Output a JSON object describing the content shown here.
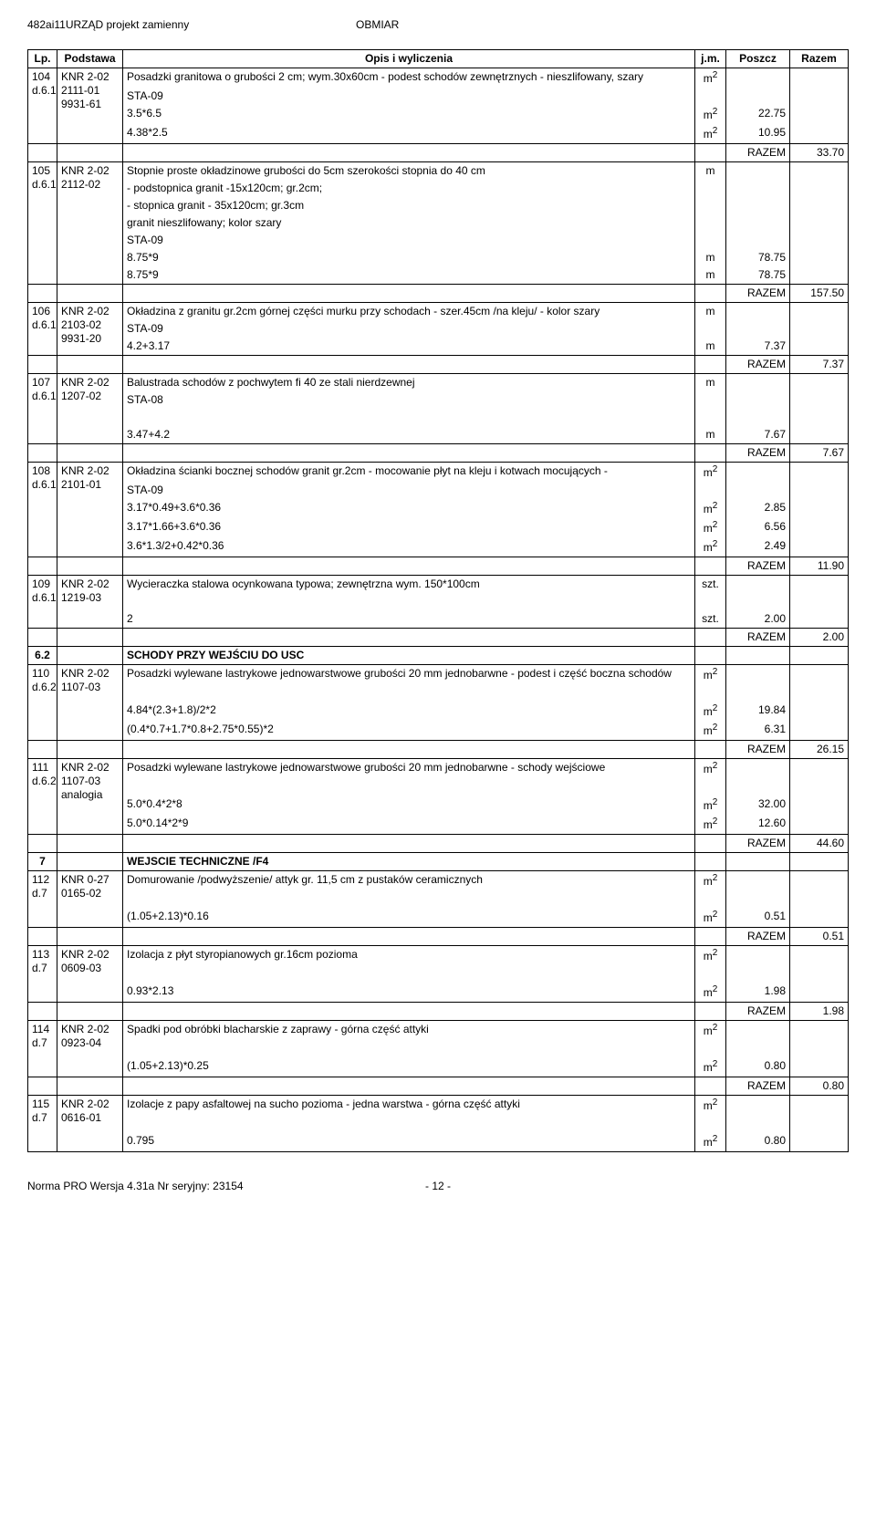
{
  "header": {
    "left": "482ai11URZĄD projekt zamienny",
    "right": "OBMIAR"
  },
  "columns": {
    "lp": "Lp.",
    "podstawa": "Podstawa",
    "opis": "Opis i wyliczenia",
    "jm": "j.m.",
    "poszcz": "Poszcz",
    "razem": "Razem"
  },
  "rows": [
    {
      "lp": "104 d.6.1",
      "podstawa": "KNR 2-02 2111-01 9931-61",
      "lines": [
        {
          "text": "Posadzki  granitowa o grubości 2 cm; wym.30x60cm - podest schodów zewnętrznych - nieszlifowany, szary",
          "jm": "m2"
        },
        {
          "text": "STA-09"
        },
        {
          "text": "3.5*6.5",
          "jm": "m2",
          "poszcz": "22.75"
        },
        {
          "text": "4.38*2.5",
          "jm": "m2",
          "poszcz": "10.95"
        }
      ]
    },
    {
      "razem_label": "RAZEM",
      "razem": "33.70"
    },
    {
      "lp": "105 d.6.1",
      "podstawa": "KNR 2-02 2112-02",
      "lines": [
        {
          "text": "Stopnie proste okładzinowe grubości do 5cm szerokości stopnia do 40 cm",
          "jm": "m"
        },
        {
          "text": "-  podstopnica granit -15x120cm; gr.2cm;"
        },
        {
          "text": "-  stopnica granit - 35x120cm; gr.3cm"
        },
        {
          "text": "granit nieszlifowany; kolor szary"
        },
        {
          "text": "STA-09"
        },
        {
          "text": "8.75*9",
          "jm": "m",
          "poszcz": "78.75"
        },
        {
          "text": "8.75*9",
          "jm": "m",
          "poszcz": "78.75"
        }
      ]
    },
    {
      "razem_label": "RAZEM",
      "razem": "157.50"
    },
    {
      "lp": "106 d.6.1",
      "podstawa": "KNR 2-02 2103-02 9931-20",
      "lines": [
        {
          "text": "Okładzina z granitu gr.2cm górnej części murku przy schodach - szer.45cm /na kleju/ - kolor szary",
          "jm": "m"
        },
        {
          "text": "STA-09"
        },
        {
          "text": "4.2+3.17",
          "jm": "m",
          "poszcz": "7.37"
        }
      ]
    },
    {
      "razem_label": "RAZEM",
      "razem": "7.37"
    },
    {
      "lp": "107 d.6.1",
      "podstawa": "KNR 2-02 1207-02",
      "lines": [
        {
          "text": "Balustrada schodów z pochwytem fi 40 ze stali nierdzewnej",
          "jm": "m"
        },
        {
          "text": "STA-08"
        },
        {
          "text": ""
        },
        {
          "text": "3.47+4.2",
          "jm": "m",
          "poszcz": "7.67"
        }
      ]
    },
    {
      "razem_label": "RAZEM",
      "razem": "7.67"
    },
    {
      "lp": "108 d.6.1",
      "podstawa": "KNR 2-02 2101-01",
      "lines": [
        {
          "text": "Okładzina ścianki bocznej schodów granit gr.2cm - mocowanie płyt na kleju i kotwach mocujących -",
          "jm": "m2"
        },
        {
          "text": "STA-09"
        },
        {
          "text": "3.17*0.49+3.6*0.36",
          "jm": "m2",
          "poszcz": "2.85"
        },
        {
          "text": "3.17*1.66+3.6*0.36",
          "jm": "m2",
          "poszcz": "6.56"
        },
        {
          "text": "3.6*1.3/2+0.42*0.36",
          "jm": "m2",
          "poszcz": "2.49"
        }
      ]
    },
    {
      "razem_label": "RAZEM",
      "razem": "11.90"
    },
    {
      "lp": "109 d.6.1",
      "podstawa": "KNR 2-02 1219-03",
      "lines": [
        {
          "text": "Wycieraczka stalowa ocynkowana typowa; zewnętrzna wym. 150*100cm",
          "jm": "szt."
        },
        {
          "text": ""
        },
        {
          "text": "2",
          "jm": "szt.",
          "poszcz": "2.00"
        }
      ]
    },
    {
      "razem_label": "RAZEM",
      "razem": "2.00"
    },
    {
      "lp": "6.2",
      "section": true,
      "opis": "SCHODY PRZY WEJŚCIU DO USC"
    },
    {
      "lp": "110 d.6.2",
      "podstawa": "KNR 2-02 1107-03",
      "lines": [
        {
          "text": "Posadzki wylewane lastrykowe jednowarstwowe grubości 20 mm jednobarwne - podest i część boczna schodów",
          "jm": "m2"
        },
        {
          "text": ""
        },
        {
          "text": "4.84*(2.3+1.8)/2*2",
          "jm": "m2",
          "poszcz": "19.84"
        },
        {
          "text": "(0.4*0.7+1.7*0.8+2.75*0.55)*2",
          "jm": "m2",
          "poszcz": "6.31"
        }
      ]
    },
    {
      "razem_label": "RAZEM",
      "razem": "26.15"
    },
    {
      "lp": "111 d.6.2",
      "podstawa": "KNR 2-02 1107-03 analogia",
      "lines": [
        {
          "text": "Posadzki wylewane lastrykowe jednowarstwowe grubości 20 mm jednobarwne - schody wejściowe",
          "jm": "m2"
        },
        {
          "text": ""
        },
        {
          "text": "5.0*0.4*2*8",
          "jm": "m2",
          "poszcz": "32.00"
        },
        {
          "text": "5.0*0.14*2*9",
          "jm": "m2",
          "poszcz": "12.60"
        }
      ]
    },
    {
      "razem_label": "RAZEM",
      "razem": "44.60"
    },
    {
      "lp": "7",
      "section": true,
      "opis": "WEJSCIE TECHNICZNE /F4"
    },
    {
      "lp": "112 d.7",
      "podstawa": "KNR 0-27 0165-02",
      "lines": [
        {
          "text": "Domurowanie /podwyższenie/ attyk gr. 11,5 cm z pustaków ceramicznych",
          "jm": "m2"
        },
        {
          "text": ""
        },
        {
          "text": "(1.05+2.13)*0.16",
          "jm": "m2",
          "poszcz": "0.51"
        }
      ]
    },
    {
      "razem_label": "RAZEM",
      "razem": "0.51"
    },
    {
      "lp": "113 d.7",
      "podstawa": "KNR 2-02 0609-03",
      "lines": [
        {
          "text": "Izolacja z płyt styropianowych gr.16cm pozioma",
          "jm": "m2"
        },
        {
          "text": ""
        },
        {
          "text": "0.93*2.13",
          "jm": "m2",
          "poszcz": "1.98"
        }
      ]
    },
    {
      "razem_label": "RAZEM",
      "razem": "1.98"
    },
    {
      "lp": "114 d.7",
      "podstawa": "KNR 2-02 0923-04",
      "lines": [
        {
          "text": "Spadki pod obróbki blacharskie z zaprawy - górna część attyki",
          "jm": "m2"
        },
        {
          "text": ""
        },
        {
          "text": "(1.05+2.13)*0.25",
          "jm": "m2",
          "poszcz": "0.80"
        }
      ]
    },
    {
      "razem_label": "RAZEM",
      "razem": "0.80"
    },
    {
      "lp": "115 d.7",
      "podstawa": "KNR 2-02 0616-01",
      "lines": [
        {
          "text": "Izolacje z papy asfaltowej na sucho pozioma - jedna warstwa - górna część attyki",
          "jm": "m2"
        },
        {
          "text": ""
        },
        {
          "text": "0.795",
          "jm": "m2",
          "poszcz": "0.80"
        }
      ]
    }
  ],
  "footer": {
    "left": "Norma PRO Wersja 4.31a Nr seryjny: 23154",
    "page": "- 12 -"
  }
}
